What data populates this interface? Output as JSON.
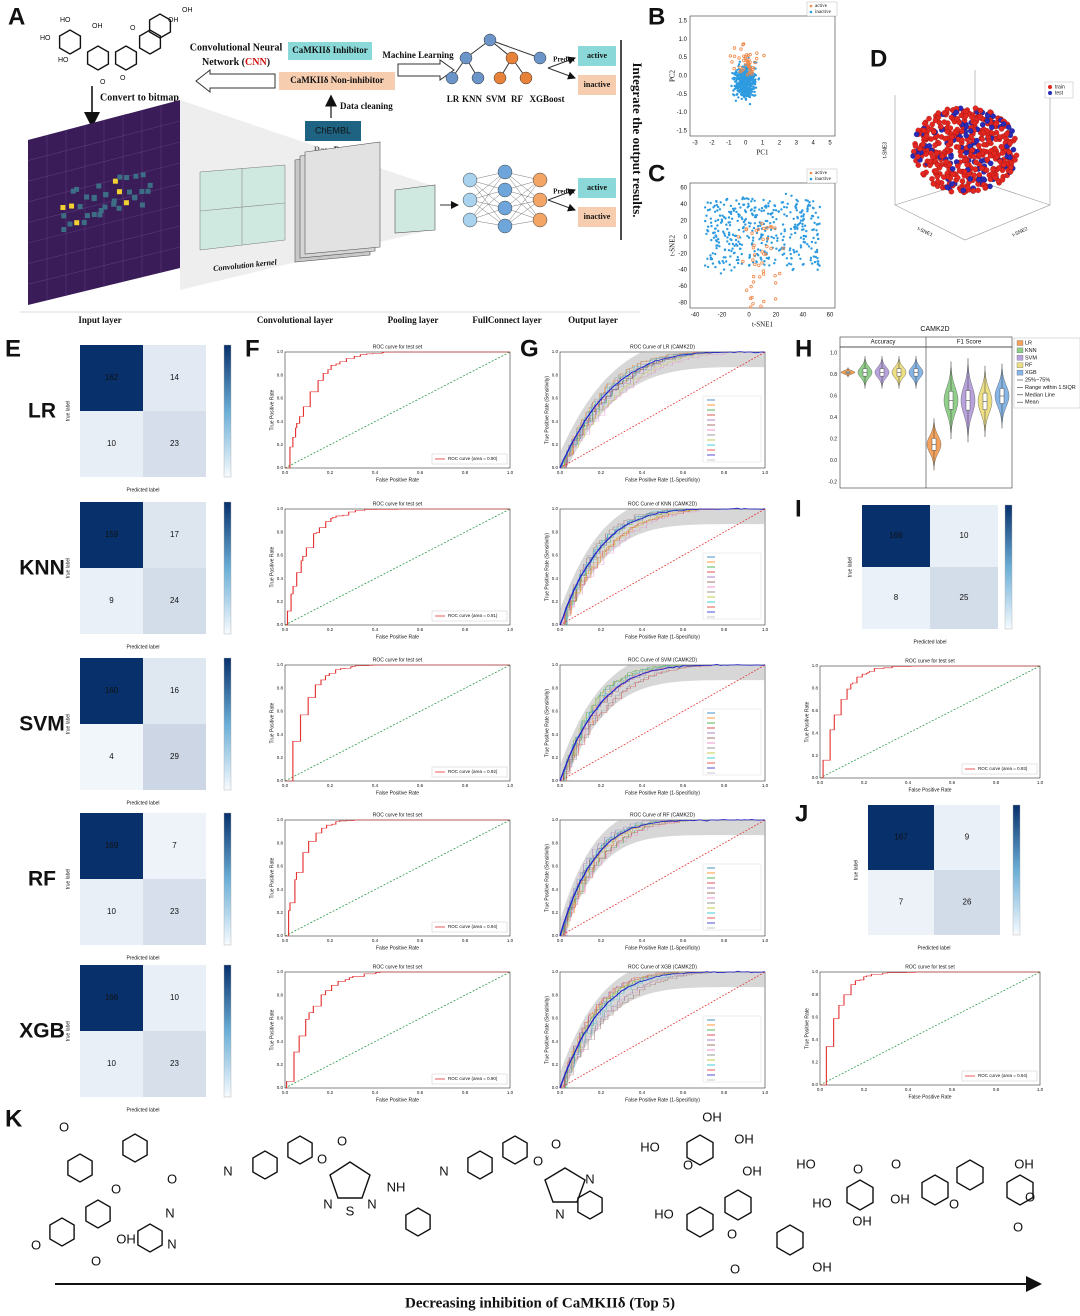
{
  "panel_labels": [
    "A",
    "B",
    "C",
    "D",
    "E",
    "F",
    "G",
    "H",
    "I",
    "J",
    "K"
  ],
  "panel_a": {
    "molecule_atoms": [
      "HO",
      "OH",
      "HO",
      "O",
      "OH",
      "O",
      "HO",
      "O",
      "OH"
    ],
    "convert": "Convert to bitmap",
    "cnn_line1": "Convolutional Neural",
    "cnn_line2_pre": "Network (",
    "cnn_acronym": "CNN",
    "cnn_line2_post": ")",
    "inhibitor": "CaMKIIδ Inhibitor",
    "non_inhibitor": "CaMKIIδ Non-inhibitor",
    "machine_learning": "Machine Learning",
    "data_cleaning": "Data cleaning",
    "chembl": "ChEMBL",
    "raw_data": "Raw Data",
    "models": [
      "LR",
      "KNN",
      "SVM",
      "RF",
      "XGBoost"
    ],
    "predict": "Predict",
    "active": "active",
    "inactive": "inactive",
    "integrate": "Integrate the output results.",
    "kernel": "Convolution kernel",
    "layers": [
      "Input layer",
      "Convolutional layer",
      "Pooling layer",
      "FullConnect layer",
      "Output layer"
    ]
  },
  "panel_b": {
    "xlabel": "PC1",
    "ylabel": "PC2",
    "legend": [
      "active",
      "inactive"
    ],
    "xticks": [
      "-3",
      "-2",
      "-1",
      "0",
      "1",
      "2",
      "3",
      "4",
      "5"
    ],
    "yticks": [
      "1.5",
      "1.0",
      "0.5",
      "0.0",
      "-0.5",
      "-1.0",
      "-1.5"
    ]
  },
  "panel_c": {
    "xlabel": "t-SNE1",
    "ylabel": "t-SNE2",
    "legend": [
      "active",
      "inactive"
    ],
    "xticks": [
      "-40",
      "-20",
      "0",
      "20",
      "40",
      "60"
    ],
    "yticks": [
      "60",
      "40",
      "20",
      "0",
      "-20",
      "-40",
      "-60",
      "-80"
    ]
  },
  "panel_d": {
    "xlabel": "t-SNE1",
    "ylabel": "t-SNE2",
    "zlabel": "t-SNE3",
    "legend": [
      "train",
      "test"
    ]
  },
  "confusion": {
    "xlabel": "Predicted label",
    "ylabel": "true label"
  },
  "roc": {
    "title": "ROC curve for test set",
    "xlabel": "False Positive Rate",
    "ylabel": "True Positive Rate",
    "ticks": [
      "0.0",
      "0.2",
      "0.4",
      "0.6",
      "0.8",
      "1.0"
    ]
  },
  "cv_roc": {
    "xlabel": "False Positive Rate (1-Specificity)",
    "ylabel": "True Positive Rate (Sensitivity)"
  },
  "models": [
    {
      "name": "LR",
      "matrix": [
        [
          162,
          14
        ],
        [
          10,
          23
        ]
      ],
      "roc_legend": "ROC curve (area = 0.90)",
      "cv_title": "ROC Curve of LR (CAMK2D)"
    },
    {
      "name": "KNN",
      "matrix": [
        [
          159,
          17
        ],
        [
          9,
          24
        ]
      ],
      "roc_legend": "ROC curve (area = 0.91)",
      "cv_title": "ROC Curve of KNN (CAMK2D)"
    },
    {
      "name": "SVM",
      "matrix": [
        [
          160,
          16
        ],
        [
          4,
          29
        ]
      ],
      "roc_legend": "ROC curve (area = 0.92)",
      "cv_title": "ROC Curve of SVM (CAMK2D)"
    },
    {
      "name": "RF",
      "matrix": [
        [
          169,
          7
        ],
        [
          10,
          23
        ]
      ],
      "roc_legend": "ROC curve (area = 0.94)",
      "cv_title": "ROC Curve of RF (CAMK2D)"
    },
    {
      "name": "XGB",
      "matrix": [
        [
          166,
          10
        ],
        [
          10,
          23
        ]
      ],
      "roc_legend": "ROC curve (area = 0.90)",
      "cv_title": "ROC Curve of XGB (CAMK2D)"
    }
  ],
  "panel_h": {
    "title": "CAMK2D",
    "facets": [
      "Accuracy",
      "F1 Score"
    ],
    "yticks": [
      "1.0",
      "0.8",
      "0.6",
      "0.4",
      "0.2",
      "0.0",
      "-0.2"
    ],
    "legend": [
      "LR",
      "KNN",
      "SVM",
      "RF",
      "XGB",
      "25%~75%",
      "Range within 1.5IQR",
      "Median Line",
      "Mean"
    ]
  },
  "panel_i": {
    "matrix": [
      [
        166,
        10
      ],
      [
        8,
        25
      ]
    ],
    "roc_legend": "ROC curve (area = 0.93)"
  },
  "panel_j": {
    "matrix": [
      [
        167,
        9
      ],
      [
        7,
        26
      ]
    ],
    "roc_legend": "ROC curve (area = 0.94)"
  },
  "panel_k": {
    "molecules": [
      [
        "O",
        "O",
        "OH",
        "O",
        "N",
        "N",
        "O",
        "O"
      ],
      [
        "N",
        "O",
        "O",
        "S",
        "N",
        "N",
        "NH"
      ],
      [
        "N",
        "O",
        "O",
        "N",
        "N"
      ],
      [
        "OH",
        "OH",
        "HO",
        "O",
        "OH",
        "HO",
        "O",
        "O",
        "OH"
      ],
      [
        "HO",
        "O",
        "O",
        "HO",
        "OH",
        "OH",
        "O",
        "OH",
        "O",
        "O"
      ]
    ],
    "caption": "Decreasing inhibition of CaMKIIδ (Top 5)"
  }
}
